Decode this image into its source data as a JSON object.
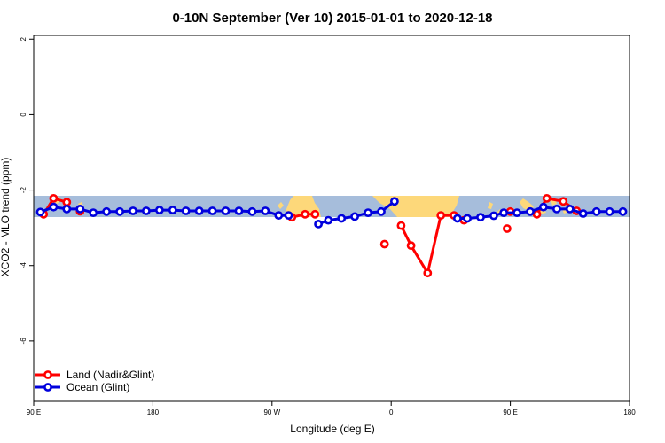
{
  "chart_data": {
    "type": "line",
    "title": "0-10N September (Ver 10)   2015-01-01 to 2020-12-18",
    "xlabel": "Longitude (deg E)",
    "ylabel": "XCO2 - MLO trend (ppm)",
    "xlim": [
      90,
      540
    ],
    "ylim": [
      -7.6,
      2.1
    ],
    "x_ticks": [
      {
        "value": 90,
        "label": "90 E"
      },
      {
        "value": 180,
        "label": "180"
      },
      {
        "value": 270,
        "label": "90 W"
      },
      {
        "value": 360,
        "label": "0"
      },
      {
        "value": 450,
        "label": "90 E"
      },
      {
        "value": 540,
        "label": "180"
      }
    ],
    "y_ticks": [
      2,
      0,
      -2,
      -4,
      -6
    ],
    "grid": false,
    "legend_position": "bottom-left",
    "background_map": {
      "lat_range_label": "0-10N",
      "ocean_color": "#a6bddb",
      "land_color": "#fdd87a"
    },
    "series": [
      {
        "name": "Land (Nadir&Glint)",
        "color": "#ff0000",
        "segments": [
          {
            "x": [
              97.5,
              105,
              115
            ],
            "y": [
              -2.64,
              -2.22,
              -2.32
            ]
          },
          {
            "x": [
              125
            ],
            "y": [
              -2.56
            ]
          },
          {
            "x": [
              285,
              295,
              302.5
            ],
            "y": [
              -2.72,
              -2.64,
              -2.64
            ]
          },
          {
            "x": [
              355
            ],
            "y": [
              -3.43
            ]
          },
          {
            "x": [
              367.5,
              375,
              387.5,
              397.5,
              407.5
            ],
            "y": [
              -2.94,
              -3.47,
              -4.2,
              -2.67,
              -2.67
            ]
          },
          {
            "x": [
              415
            ],
            "y": [
              -2.8
            ]
          },
          {
            "x": [
              447.5
            ],
            "y": [
              -3.02
            ]
          },
          {
            "x": [
              450
            ],
            "y": [
              -2.57
            ]
          },
          {
            "x": [
              470,
              477.5,
              490,
              500
            ],
            "y": [
              -2.64,
              -2.22,
              -2.3,
              -2.55
            ]
          }
        ]
      },
      {
        "name": "Ocean (Glint)",
        "color": "#0000dd",
        "segments": [
          {
            "x": [
              95,
              105,
              115,
              125,
              135,
              145,
              155,
              165,
              175,
              185,
              195,
              205,
              215,
              225,
              235,
              245,
              255,
              265,
              275,
              282.5
            ],
            "y": [
              -2.58,
              -2.45,
              -2.5,
              -2.5,
              -2.6,
              -2.57,
              -2.57,
              -2.55,
              -2.55,
              -2.53,
              -2.53,
              -2.55,
              -2.55,
              -2.55,
              -2.55,
              -2.55,
              -2.57,
              -2.55,
              -2.67,
              -2.67
            ]
          },
          {
            "x": [
              305,
              312.5,
              322.5,
              332.5,
              342.5,
              352.5,
              362.5
            ],
            "y": [
              -2.9,
              -2.8,
              -2.75,
              -2.7,
              -2.6,
              -2.57,
              -2.3
            ]
          },
          {
            "x": [
              410,
              417.5,
              427.5,
              437.5,
              445,
              455,
              465,
              475,
              485,
              495,
              505,
              515,
              525,
              535
            ],
            "y": [
              -2.75,
              -2.75,
              -2.72,
              -2.68,
              -2.6,
              -2.6,
              -2.57,
              -2.45,
              -2.5,
              -2.5,
              -2.62,
              -2.57,
              -2.57,
              -2.57
            ]
          }
        ]
      }
    ]
  }
}
